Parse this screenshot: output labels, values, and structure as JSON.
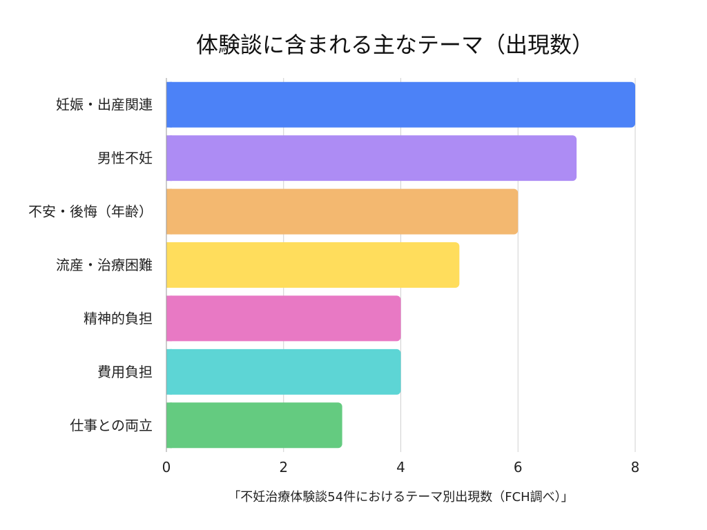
{
  "chart_data": {
    "type": "bar",
    "orientation": "horizontal",
    "title": "体験談に含まれる主なテーマ（出現数）",
    "xlabel": "「不妊治療体験談54件におけるテーマ別出現数（FCH調べ）」",
    "ylabel": "",
    "categories": [
      "妊娠・出産関連",
      "男性不妊",
      "不安・後悔（年齢）",
      "流産・治療困難",
      "精神的負担",
      "費用負担",
      "仕事との両立"
    ],
    "values": [
      8,
      7,
      6,
      5,
      4,
      4,
      3
    ],
    "colors": [
      "#4c82f7",
      "#ad8cf4",
      "#f3b870",
      "#ffdd5c",
      "#e879c4",
      "#5dd5d5",
      "#64cb80"
    ],
    "xlim": [
      0,
      8
    ],
    "xticks": [
      0,
      2,
      4,
      6,
      8
    ],
    "grid": "vertical",
    "legend": "none"
  }
}
